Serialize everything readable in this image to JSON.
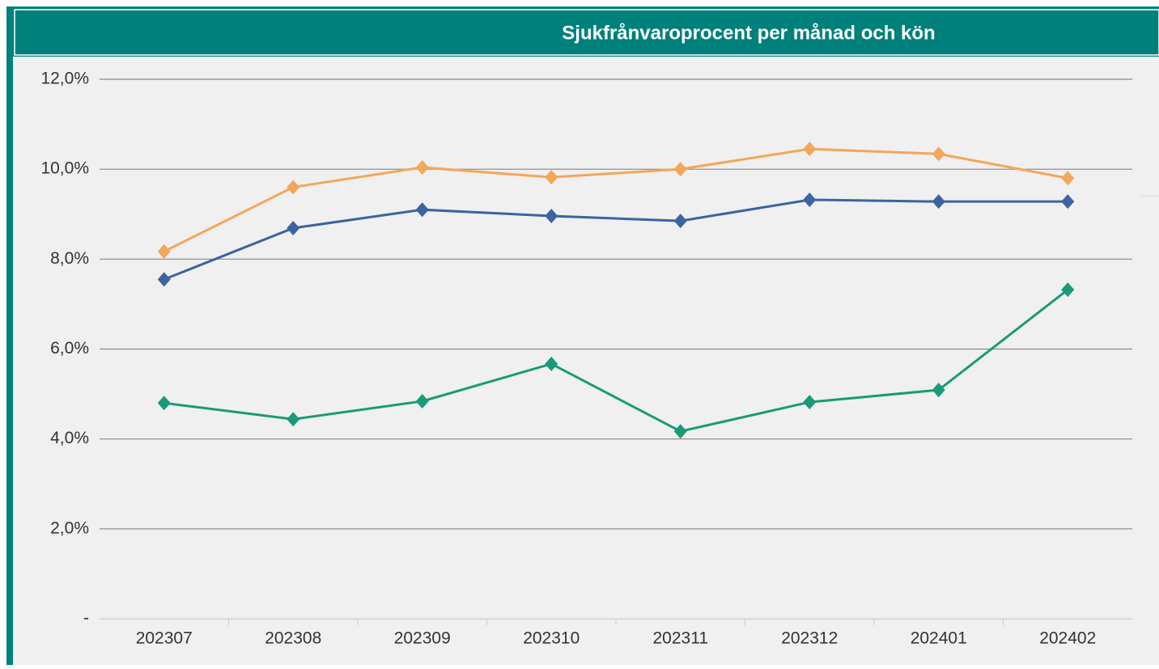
{
  "chart_data": {
    "type": "line",
    "title": "Sjukfrånvaroprocent per månad och kön",
    "categories": [
      "202307",
      "202308",
      "202309",
      "202310",
      "202311",
      "202312",
      "202401",
      "202402"
    ],
    "series": [
      {
        "color": "#f4a65a",
        "values": [
          8.17,
          9.6,
          10.04,
          9.82,
          10.0,
          10.45,
          10.34,
          9.8
        ]
      },
      {
        "color": "#3b64a0",
        "values": [
          7.55,
          8.69,
          9.1,
          8.96,
          8.85,
          9.32,
          9.28,
          9.28
        ]
      },
      {
        "color": "#1a9a78",
        "values": [
          4.8,
          4.44,
          4.84,
          5.67,
          4.17,
          4.82,
          5.09,
          7.32
        ]
      }
    ],
    "ylim": [
      0,
      12
    ],
    "yticks": [
      {
        "value": 0,
        "label": "-"
      },
      {
        "value": 2,
        "label": "2,0%"
      },
      {
        "value": 4,
        "label": "4,0%"
      },
      {
        "value": 6,
        "label": "6,0%"
      },
      {
        "value": 8,
        "label": "8,0%"
      },
      {
        "value": 10,
        "label": "10,0%"
      },
      {
        "value": 12,
        "label": "12,0%"
      }
    ],
    "grid": true
  }
}
